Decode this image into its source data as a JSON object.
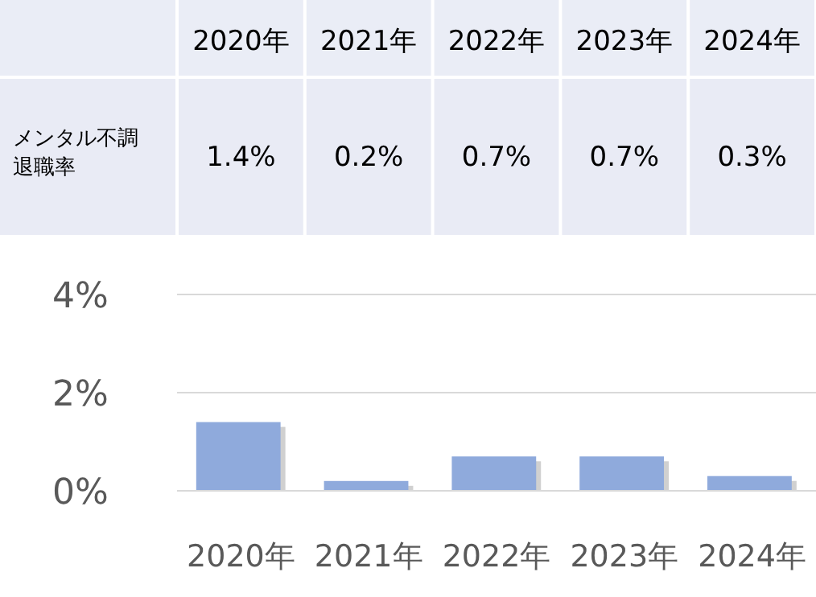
{
  "chart_data": {
    "type": "bar",
    "categories": [
      "2020年",
      "2021年",
      "2022年",
      "2023年",
      "2024年"
    ],
    "series": [
      {
        "name": "メンタル不調退職率",
        "color": "#8faadc",
        "values": [
          1.4,
          0.2,
          0.7,
          0.7,
          0.3
        ],
        "value_labels": [
          "1.4%",
          "0.2%",
          "0.7%",
          "0.7%",
          "0.3%"
        ]
      }
    ],
    "ylim": [
      0,
      4
    ],
    "yticks": [
      {
        "value": 0,
        "label": "0%"
      },
      {
        "value": 2,
        "label": "2%"
      },
      {
        "value": 4,
        "label": "4%"
      }
    ],
    "grid": "y",
    "legend": false
  }
}
